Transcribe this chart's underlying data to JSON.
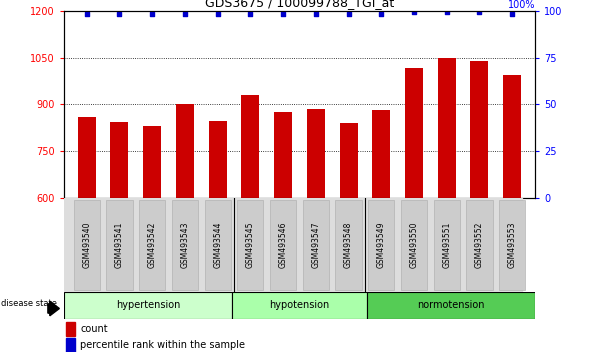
{
  "title": "GDS3675 / 100099788_TGI_at",
  "samples": [
    "GSM493540",
    "GSM493541",
    "GSM493542",
    "GSM493543",
    "GSM493544",
    "GSM493545",
    "GSM493546",
    "GSM493547",
    "GSM493548",
    "GSM493549",
    "GSM493550",
    "GSM493551",
    "GSM493552",
    "GSM493553"
  ],
  "bar_values": [
    860,
    845,
    830,
    900,
    848,
    930,
    875,
    885,
    840,
    882,
    1015,
    1050,
    1040,
    995
  ],
  "percentile_values": [
    98,
    98,
    98,
    98,
    98,
    98,
    98,
    98,
    98,
    98,
    99,
    99,
    99,
    98
  ],
  "bar_color": "#cc0000",
  "percentile_color": "#0000cc",
  "ylim_left": [
    600,
    1200
  ],
  "ylim_right": [
    0,
    100
  ],
  "yticks_left": [
    600,
    750,
    900,
    1050,
    1200
  ],
  "yticks_right": [
    0,
    25,
    50,
    75,
    100
  ],
  "groups": [
    {
      "label": "hypertension",
      "start": 0,
      "end": 5,
      "color": "#ccffcc"
    },
    {
      "label": "hypotension",
      "start": 5,
      "end": 9,
      "color": "#aaffaa"
    },
    {
      "label": "normotension",
      "start": 9,
      "end": 14,
      "color": "#55cc55"
    }
  ],
  "disease_state_label": "disease state",
  "legend_count": "count",
  "legend_percentile": "percentile rank within the sample",
  "background_color": "#ffffff",
  "tick_label_bg": "#cccccc",
  "bar_width": 0.55
}
